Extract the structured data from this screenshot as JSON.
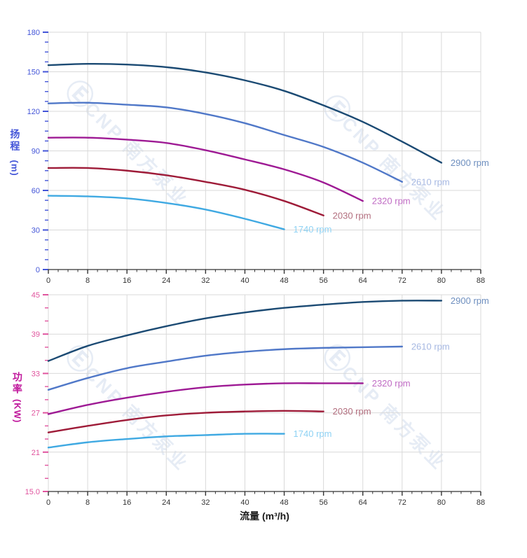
{
  "page": {
    "background": "#ffffff"
  },
  "watermark": {
    "logo": "Ⓔ",
    "text": "CNP 南方泵业"
  },
  "x_title": "流量 (m³/h)",
  "chart_data": [
    {
      "id": "head",
      "type": "line",
      "title": "",
      "y_title_cn": "扬程",
      "y_title_unit": "(m)",
      "xlabel": "流量 (m³/h)",
      "ylabel": "扬程 (m)",
      "grid_color": "#d9d9d9",
      "x_axis": {
        "min": 0,
        "max": 88,
        "major_step": 8,
        "minor_step": 2,
        "tick_labels": [
          "0",
          "8",
          "16",
          "24",
          "32",
          "40",
          "48",
          "56",
          "64",
          "72",
          "80",
          "88"
        ],
        "label_color": "#333333",
        "line_color": "#333333"
      },
      "y_axis": {
        "min": 0,
        "max": 180,
        "major_step": 30,
        "minor_step": 7.5,
        "tick_labels": [
          "0",
          "30",
          "60",
          "90",
          "120",
          "150",
          "180"
        ],
        "color": "#4355d8",
        "title_color": "#4355d8"
      },
      "series": [
        {
          "name": "2900 rpm",
          "color": "#1b4a73",
          "label_color": "#6e8fbf",
          "x": [
            0,
            8,
            16,
            24,
            32,
            40,
            48,
            56,
            64,
            72,
            80
          ],
          "y": [
            155,
            156,
            155.5,
            153.5,
            149.5,
            143.5,
            135.5,
            124.5,
            112,
            97,
            81
          ]
        },
        {
          "name": "2610 rpm",
          "color": "#5078c8",
          "label_color": "#a6b8e2",
          "x": [
            0,
            8,
            16,
            24,
            32,
            40,
            48,
            56,
            64,
            72
          ],
          "y": [
            126,
            126.5,
            125,
            123,
            118,
            111,
            102,
            93,
            81,
            66.5
          ]
        },
        {
          "name": "2320 rpm",
          "color": "#9e1a94",
          "label_color": "#c06cc4",
          "x": [
            0,
            8,
            16,
            24,
            32,
            40,
            48,
            56,
            64
          ],
          "y": [
            100,
            100,
            98.5,
            96,
            90.5,
            83.5,
            76,
            66,
            52
          ]
        },
        {
          "name": "2030 rpm",
          "color": "#9e1b38",
          "label_color": "#b26e7e",
          "x": [
            0,
            8,
            16,
            24,
            32,
            40,
            48,
            56
          ],
          "y": [
            77,
            77,
            75,
            71.5,
            66.5,
            60.5,
            52,
            41
          ]
        },
        {
          "name": "1740 rpm",
          "color": "#3fa9e2",
          "label_color": "#8fd2f4",
          "x": [
            0,
            8,
            16,
            24,
            32,
            40,
            48
          ],
          "y": [
            56,
            55.5,
            54,
            50.5,
            45.5,
            38.5,
            30.5
          ]
        }
      ]
    },
    {
      "id": "power",
      "type": "line",
      "title": "",
      "y_title_cn": "功率",
      "y_title_unit": "(KW)",
      "xlabel": "流量 (m³/h)",
      "ylabel": "功率 (KW)",
      "grid_color": "#d9d9d9",
      "x_axis": {
        "min": 0,
        "max": 88,
        "major_step": 8,
        "minor_step": 2,
        "tick_labels": [
          "0",
          "8",
          "16",
          "24",
          "32",
          "40",
          "48",
          "56",
          "64",
          "72",
          "80",
          "88"
        ],
        "label_color": "#333333",
        "line_color": "#333333"
      },
      "y_axis": {
        "min": 15,
        "max": 45,
        "major_step": 6,
        "minor_step": 2,
        "tick_labels": [
          "15.0",
          "21",
          "27",
          "33",
          "39",
          "45"
        ],
        "color": "#e0549e",
        "title_color": "#c0189c"
      },
      "series": [
        {
          "name": "2900 rpm",
          "color": "#1b4a73",
          "label_color": "#6e8fbf",
          "x": [
            0,
            8,
            16,
            24,
            32,
            40,
            48,
            56,
            64,
            72,
            80
          ],
          "y": [
            34.9,
            37.2,
            38.8,
            40.2,
            41.4,
            42.3,
            43.0,
            43.5,
            43.9,
            44.1,
            44.1
          ]
        },
        {
          "name": "2610 rpm",
          "color": "#5078c8",
          "label_color": "#a6b8e2",
          "x": [
            0,
            8,
            16,
            24,
            32,
            40,
            48,
            56,
            64,
            72
          ],
          "y": [
            30.5,
            32.3,
            33.8,
            34.8,
            35.7,
            36.3,
            36.7,
            36.9,
            37.0,
            37.1
          ]
        },
        {
          "name": "2320 rpm",
          "color": "#9e1a94",
          "label_color": "#c06cc4",
          "x": [
            0,
            8,
            16,
            24,
            32,
            40,
            48,
            56,
            64
          ],
          "y": [
            26.8,
            28.2,
            29.3,
            30.2,
            30.9,
            31.3,
            31.5,
            31.5,
            31.5
          ]
        },
        {
          "name": "2030 rpm",
          "color": "#9e1b38",
          "label_color": "#b26e7e",
          "x": [
            0,
            8,
            16,
            24,
            32,
            40,
            48,
            56
          ],
          "y": [
            24.0,
            25.0,
            25.9,
            26.6,
            27.0,
            27.2,
            27.3,
            27.2
          ]
        },
        {
          "name": "1740 rpm",
          "color": "#3fa9e2",
          "label_color": "#8fd2f4",
          "x": [
            0,
            8,
            16,
            24,
            32,
            40,
            48
          ],
          "y": [
            21.7,
            22.5,
            23.0,
            23.4,
            23.6,
            23.8,
            23.8
          ]
        }
      ]
    }
  ]
}
